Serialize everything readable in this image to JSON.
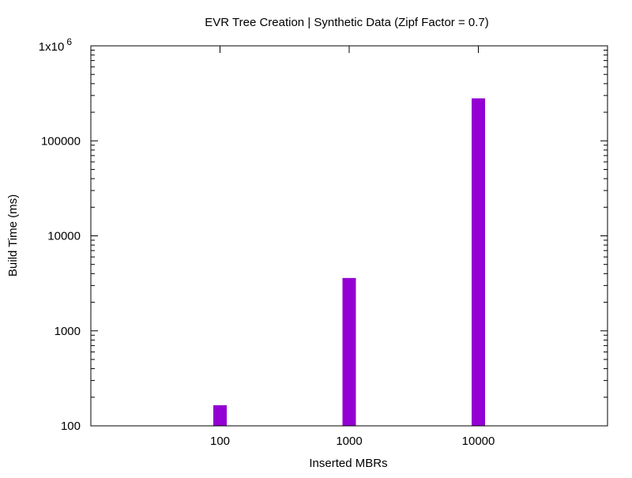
{
  "chart_data": {
    "type": "bar",
    "title": "EVR Tree Creation | Synthetic Data (Zipf Factor = 0.7)",
    "xlabel": "Inserted MBRs",
    "ylabel": "Build Time (ms)",
    "categories": [
      "100",
      "1000",
      "10000"
    ],
    "values": [
      165,
      3600,
      280000
    ],
    "y_scale": "log",
    "ylim": [
      100,
      1000000
    ],
    "y_ticks": [
      {
        "value": 100,
        "label": "100"
      },
      {
        "value": 1000,
        "label": "1000"
      },
      {
        "value": 10000,
        "label": "10000"
      },
      {
        "value": 100000,
        "label": "100000"
      },
      {
        "value": 1000000,
        "label": "1x10",
        "exponent": "6"
      }
    ],
    "bar_color": "#9400d3",
    "grid": false,
    "legend": "none"
  }
}
